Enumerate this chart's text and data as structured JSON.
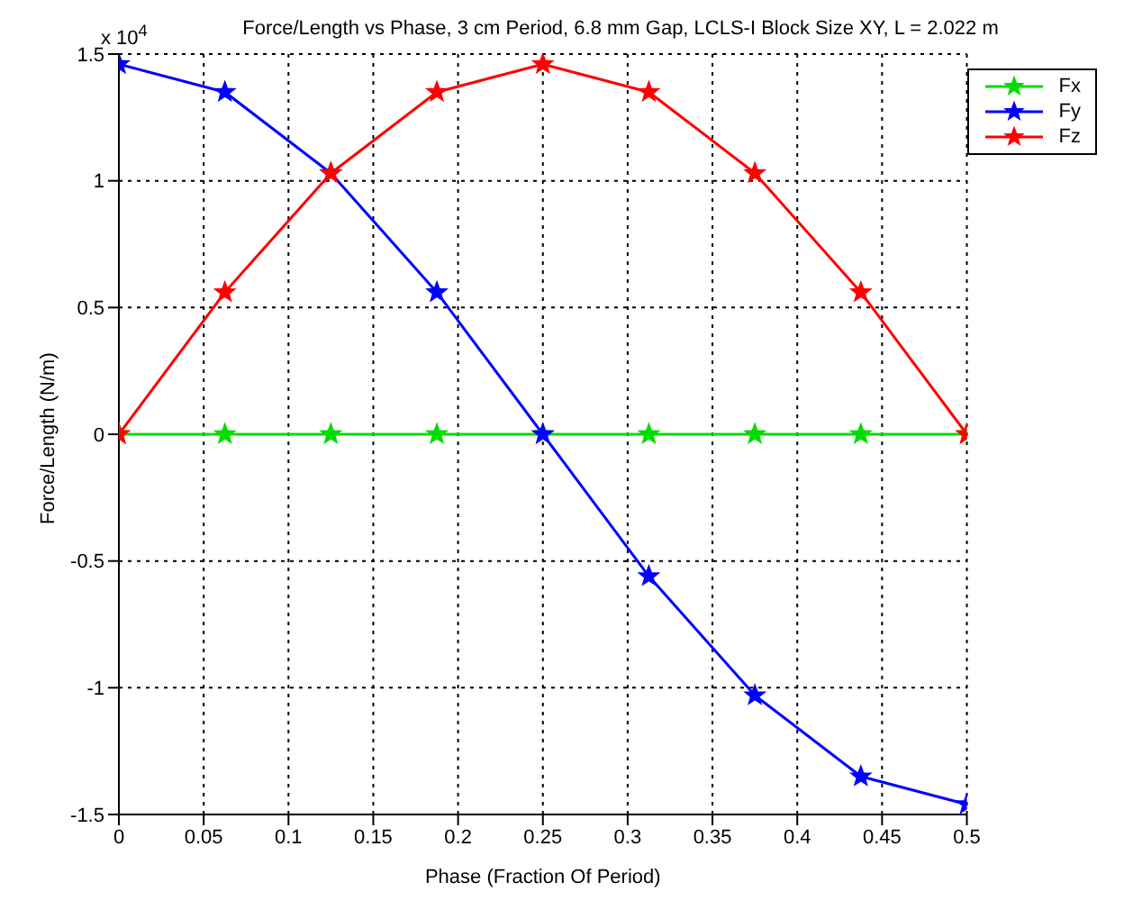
{
  "chart_data": {
    "type": "line",
    "title": "Force/Length vs Phase, 3 cm Period, 6.8 mm Gap, LCLS-I Block Size XY, L = 2.022 m",
    "xlabel": "Phase (Fraction Of Period)",
    "ylabel": "Force/Length (N/m)",
    "annotations": [
      "x 10$^{4}$"
    ],
    "x": [
      0,
      0.0625,
      0.125,
      0.1875,
      0.25,
      0.3125,
      0.375,
      0.4375,
      0.5
    ],
    "series": [
      {
        "name": "Fx",
        "color": "#00dd00",
        "values": [
          0,
          0,
          0,
          0,
          0,
          0,
          0,
          0,
          0
        ]
      },
      {
        "name": "Fy",
        "color": "#0000ff",
        "values": [
          1.46,
          1.35,
          1.03,
          0.56,
          0,
          -0.56,
          -1.03,
          -1.35,
          -1.46
        ]
      },
      {
        "name": "Fz",
        "color": "#ff0000",
        "values": [
          0,
          0.56,
          1.03,
          1.35,
          1.46,
          1.35,
          1.03,
          0.56,
          0
        ]
      }
    ],
    "xlim": [
      0,
      0.5
    ],
    "xticks": [
      0,
      0.05,
      0.1,
      0.15,
      0.2,
      0.25,
      0.3,
      0.35,
      0.4,
      0.45,
      0.5
    ],
    "ylim": [
      -1.5,
      1.5
    ],
    "yticks": [
      -1.5,
      -1,
      -0.5,
      0,
      0.5,
      1,
      1.5
    ],
    "grid": true,
    "legend": "top right",
    "marker": "star",
    "line_style": "solid"
  }
}
